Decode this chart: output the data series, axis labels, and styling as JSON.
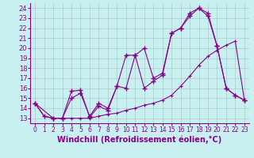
{
  "background_color": "#c8f0f0",
  "line_color": "#880088",
  "grid_color": "#b0c8c8",
  "xlabel": "Windchill (Refroidissement éolien,°C)",
  "xlabel_fontsize": 7,
  "ytick_fontsize": 6,
  "xtick_fontsize": 5.5,
  "ylim": [
    12.5,
    24.5
  ],
  "xlim": [
    -0.5,
    23.5
  ],
  "yticks": [
    13,
    14,
    15,
    16,
    17,
    18,
    19,
    20,
    21,
    22,
    23,
    24
  ],
  "xticks": [
    0,
    1,
    2,
    3,
    4,
    5,
    6,
    7,
    8,
    9,
    10,
    11,
    12,
    13,
    14,
    15,
    16,
    17,
    18,
    19,
    20,
    21,
    22,
    23
  ],
  "line1_x": [
    0,
    1,
    2,
    3,
    4,
    5,
    6,
    7,
    8,
    9,
    10,
    11,
    12,
    13,
    14,
    15,
    16,
    17,
    18,
    19,
    20,
    21,
    22,
    23
  ],
  "line1_y": [
    14.5,
    13.2,
    13.0,
    13.0,
    15.7,
    15.8,
    13.1,
    14.2,
    13.8,
    16.2,
    19.3,
    19.3,
    20.0,
    17.0,
    17.5,
    21.5,
    22.0,
    23.2,
    24.0,
    23.5,
    20.2,
    16.0,
    15.3,
    14.8
  ],
  "line2_x": [
    0,
    2,
    3,
    4,
    5,
    6,
    7,
    8,
    9,
    10,
    11,
    12,
    13,
    14,
    15,
    16,
    17,
    18,
    19,
    20,
    21,
    22,
    23
  ],
  "line2_y": [
    14.5,
    13.0,
    13.0,
    15.0,
    15.5,
    13.2,
    14.5,
    14.0,
    16.2,
    16.0,
    19.3,
    16.0,
    16.7,
    17.3,
    21.5,
    22.0,
    23.5,
    24.0,
    23.2,
    20.2,
    16.0,
    15.3,
    14.8
  ],
  "line3_x": [
    0,
    1,
    2,
    3,
    4,
    5,
    6,
    7,
    8,
    9,
    10,
    11,
    12,
    13,
    14,
    15,
    16,
    17,
    18,
    19,
    20,
    21,
    22,
    23
  ],
  "line3_y": [
    14.5,
    13.2,
    13.0,
    13.0,
    13.0,
    13.0,
    13.0,
    13.2,
    13.4,
    13.5,
    13.8,
    14.0,
    14.3,
    14.5,
    14.8,
    15.3,
    16.2,
    17.2,
    18.3,
    19.2,
    19.8,
    20.3,
    20.7,
    14.8
  ]
}
